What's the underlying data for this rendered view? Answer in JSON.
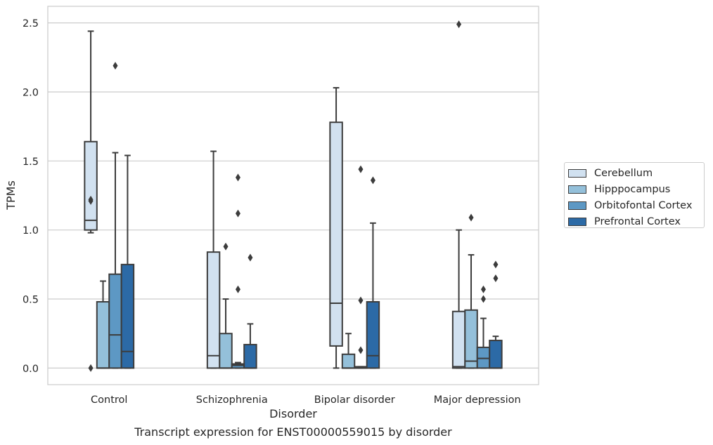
{
  "caption": "Transcript expression for ENST00000559015 by disorder",
  "chart_data": {
    "type": "box",
    "title": "",
    "xlabel": "Disorder",
    "ylabel": "TPMs",
    "ylim": [
      -0.12,
      2.62
    ],
    "yticks": [
      "0.0",
      "0.5",
      "1.0",
      "1.5",
      "2.0",
      "2.5"
    ],
    "grid": "horizontal",
    "legend_position": "right",
    "categories": [
      "Control",
      "Schizophrenia",
      "Bipolar disorder",
      "Major depression"
    ],
    "series": [
      {
        "name": "Cerebellum",
        "color": "#d1e1f0"
      },
      {
        "name": "Hipppocampus",
        "color": "#94c0da"
      },
      {
        "name": "Orbitofontal Cortex",
        "color": "#5d98c4"
      },
      {
        "name": "Prefrontal Cortex",
        "color": "#2c6aa6"
      }
    ],
    "boxes": [
      [
        {
          "q1": 1.0,
          "median": 1.07,
          "q3": 1.64,
          "whislo": 0.98,
          "whishi": 2.44,
          "fliers": [
            1.21,
            1.22,
            0.0
          ]
        },
        {
          "q1": 0.0,
          "median": 0.0,
          "q3": 0.48,
          "whislo": 0.0,
          "whishi": 0.63,
          "fliers": []
        },
        {
          "q1": 0.0,
          "median": 0.24,
          "q3": 0.68,
          "whislo": 0.0,
          "whishi": 1.56,
          "fliers": [
            2.19
          ]
        },
        {
          "q1": 0.0,
          "median": 0.12,
          "q3": 0.75,
          "whislo": 0.0,
          "whishi": 1.54,
          "fliers": []
        }
      ],
      [
        {
          "q1": 0.0,
          "median": 0.09,
          "q3": 0.84,
          "whislo": 0.0,
          "whishi": 1.57,
          "fliers": []
        },
        {
          "q1": 0.0,
          "median": 0.0,
          "q3": 0.25,
          "whislo": 0.0,
          "whishi": 0.5,
          "fliers": [
            0.88
          ]
        },
        {
          "q1": 0.0,
          "median": 0.02,
          "q3": 0.03,
          "whislo": 0.0,
          "whishi": 0.04,
          "fliers": [
            1.38,
            1.12,
            0.57
          ]
        },
        {
          "q1": 0.0,
          "median": 0.0,
          "q3": 0.17,
          "whislo": 0.0,
          "whishi": 0.32,
          "fliers": [
            0.8
          ]
        }
      ],
      [
        {
          "q1": 0.16,
          "median": 0.47,
          "q3": 1.78,
          "whislo": 0.0,
          "whishi": 2.03,
          "fliers": []
        },
        {
          "q1": 0.0,
          "median": 0.0,
          "q3": 0.1,
          "whislo": 0.0,
          "whishi": 0.25,
          "fliers": []
        },
        {
          "q1": 0.0,
          "median": 0.0,
          "q3": 0.01,
          "whislo": 0.0,
          "whishi": 0.01,
          "fliers": [
            1.44,
            0.49,
            0.13
          ]
        },
        {
          "q1": 0.0,
          "median": 0.09,
          "q3": 0.48,
          "whislo": 0.0,
          "whishi": 1.05,
          "fliers": [
            1.36
          ]
        }
      ],
      [
        {
          "q1": 0.0,
          "median": 0.01,
          "q3": 0.41,
          "whislo": 0.0,
          "whishi": 1.0,
          "fliers": [
            2.49
          ]
        },
        {
          "q1": 0.0,
          "median": 0.05,
          "q3": 0.42,
          "whislo": 0.0,
          "whishi": 0.82,
          "fliers": [
            1.09
          ]
        },
        {
          "q1": 0.0,
          "median": 0.07,
          "q3": 0.15,
          "whislo": 0.0,
          "whishi": 0.36,
          "fliers": [
            0.57,
            0.5
          ]
        },
        {
          "q1": 0.0,
          "median": 0.0,
          "q3": 0.2,
          "whislo": 0.0,
          "whishi": 0.23,
          "fliers": [
            0.75,
            0.65
          ]
        }
      ]
    ]
  }
}
